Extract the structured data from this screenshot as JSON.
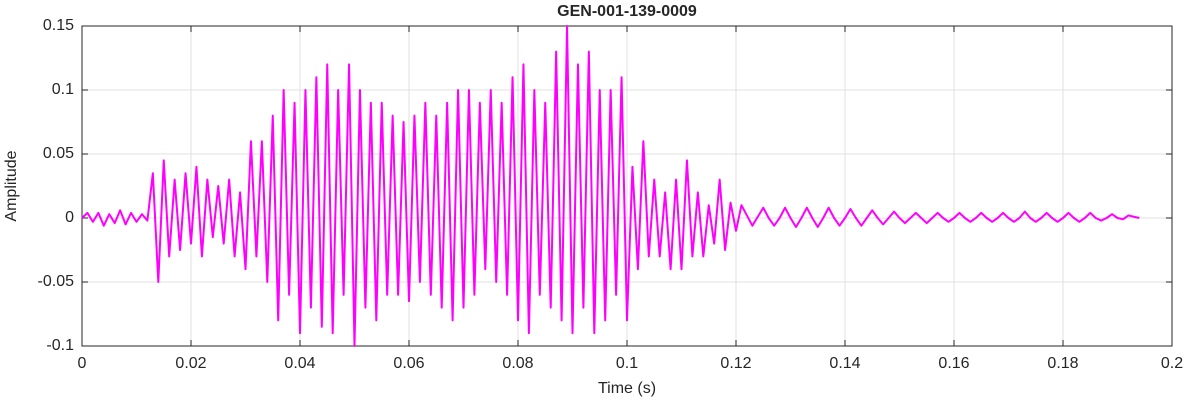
{
  "chart_data": {
    "type": "line",
    "title": "GEN-001-139-0009",
    "xlabel": "Time (s)",
    "ylabel": "Amplitude",
    "color": "#ff00ff",
    "grid": true,
    "xlim": [
      0,
      0.2
    ],
    "ylim": [
      -0.1,
      0.15
    ],
    "xticks": [
      0,
      0.02,
      0.04,
      0.06,
      0.08,
      0.1,
      0.12,
      0.14,
      0.16,
      0.18,
      0.2
    ],
    "yticks": [
      -0.1,
      -0.05,
      0,
      0.05,
      0.1,
      0.15
    ],
    "x": [
      0,
      0.001,
      0.002,
      0.003,
      0.004,
      0.005,
      0.006,
      0.007,
      0.008,
      0.009,
      0.01,
      0.011,
      0.012,
      0.013,
      0.014,
      0.015,
      0.016,
      0.017,
      0.018,
      0.019,
      0.02,
      0.021,
      0.022,
      0.023,
      0.024,
      0.025,
      0.026,
      0.027,
      0.028,
      0.029,
      0.03,
      0.031,
      0.032,
      0.033,
      0.034,
      0.035,
      0.036,
      0.037,
      0.038,
      0.039,
      0.04,
      0.041,
      0.042,
      0.043,
      0.044,
      0.045,
      0.046,
      0.047,
      0.048,
      0.049,
      0.05,
      0.051,
      0.052,
      0.053,
      0.054,
      0.055,
      0.056,
      0.057,
      0.058,
      0.059,
      0.06,
      0.061,
      0.062,
      0.063,
      0.064,
      0.065,
      0.066,
      0.067,
      0.068,
      0.069,
      0.07,
      0.071,
      0.072,
      0.073,
      0.074,
      0.075,
      0.076,
      0.077,
      0.078,
      0.079,
      0.08,
      0.081,
      0.082,
      0.083,
      0.084,
      0.085,
      0.086,
      0.087,
      0.088,
      0.089,
      0.09,
      0.091,
      0.092,
      0.093,
      0.094,
      0.095,
      0.096,
      0.097,
      0.098,
      0.099,
      0.1,
      0.101,
      0.102,
      0.103,
      0.104,
      0.105,
      0.106,
      0.107,
      0.108,
      0.109,
      0.11,
      0.111,
      0.112,
      0.113,
      0.114,
      0.115,
      0.116,
      0.117,
      0.118,
      0.119,
      0.12,
      0.121,
      0.122,
      0.123,
      0.124,
      0.125,
      0.126,
      0.127,
      0.128,
      0.129,
      0.13,
      0.131,
      0.132,
      0.133,
      0.134,
      0.135,
      0.136,
      0.137,
      0.138,
      0.139,
      0.14,
      0.141,
      0.142,
      0.143,
      0.144,
      0.145,
      0.146,
      0.147,
      0.148,
      0.149,
      0.15,
      0.151,
      0.152,
      0.153,
      0.154,
      0.155,
      0.156,
      0.157,
      0.158,
      0.159,
      0.16,
      0.161,
      0.162,
      0.163,
      0.164,
      0.165,
      0.166,
      0.167,
      0.168,
      0.169,
      0.17,
      0.171,
      0.172,
      0.173,
      0.174,
      0.175,
      0.176,
      0.177,
      0.178,
      0.179,
      0.18,
      0.181,
      0.182,
      0.183,
      0.184,
      0.185,
      0.186,
      0.187,
      0.188,
      0.189,
      0.19,
      0.191,
      0.192,
      0.193,
      0.194
    ],
    "values": [
      0,
      0.004,
      -0.003,
      0.004,
      -0.006,
      0.003,
      -0.004,
      0.006,
      -0.005,
      0.004,
      -0.003,
      0.003,
      -0.002,
      0.035,
      -0.05,
      0.045,
      -0.03,
      0.03,
      -0.025,
      0.035,
      -0.02,
      0.04,
      -0.03,
      0.03,
      -0.015,
      0.025,
      -0.02,
      0.03,
      -0.03,
      0.02,
      -0.04,
      0.06,
      -0.03,
      0.06,
      -0.05,
      0.08,
      -0.08,
      0.1,
      -0.06,
      0.09,
      -0.09,
      0.1,
      -0.07,
      0.11,
      -0.085,
      0.12,
      -0.09,
      0.1,
      -0.06,
      0.12,
      -0.1,
      0.1,
      -0.07,
      0.09,
      -0.08,
      0.09,
      -0.06,
      0.08,
      -0.06,
      0.075,
      -0.065,
      0.08,
      -0.05,
      0.09,
      -0.06,
      0.08,
      -0.07,
      0.09,
      -0.08,
      0.1,
      -0.07,
      0.1,
      -0.06,
      0.09,
      -0.04,
      0.1,
      -0.05,
      0.09,
      -0.06,
      0.11,
      -0.08,
      0.12,
      -0.09,
      0.1,
      -0.06,
      0.09,
      -0.07,
      0.13,
      -0.08,
      0.15,
      -0.09,
      0.12,
      -0.07,
      0.13,
      -0.09,
      0.1,
      -0.08,
      0.1,
      -0.06,
      0.11,
      -0.08,
      0.04,
      -0.04,
      0.06,
      -0.03,
      0.03,
      -0.03,
      0.02,
      -0.04,
      0.03,
      -0.04,
      0.045,
      -0.03,
      0.02,
      -0.03,
      0.01,
      -0.02,
      0.03,
      -0.025,
      0.012,
      -0.01,
      0.01,
      0.002,
      -0.006,
      0.001,
      0.008,
      0,
      -0.006,
      0,
      0.008,
      0,
      -0.007,
      0,
      0.008,
      0,
      -0.007,
      0,
      0.008,
      0,
      -0.006,
      0,
      0.007,
      0,
      -0.006,
      0,
      0.006,
      0,
      -0.005,
      0,
      0.005,
      0,
      -0.004,
      0,
      0.004,
      0,
      -0.004,
      0,
      0.004,
      0,
      -0.003,
      0,
      0.004,
      0,
      -0.003,
      0,
      0.004,
      0,
      -0.003,
      0,
      0.004,
      0,
      -0.003,
      0,
      0.005,
      0,
      -0.003,
      0,
      0.004,
      0,
      -0.003,
      0,
      0.004,
      0,
      -0.003,
      0,
      0.004,
      0,
      -0.002,
      0,
      0.003,
      0,
      -0.001,
      0.002,
      0.001,
      0
    ]
  }
}
